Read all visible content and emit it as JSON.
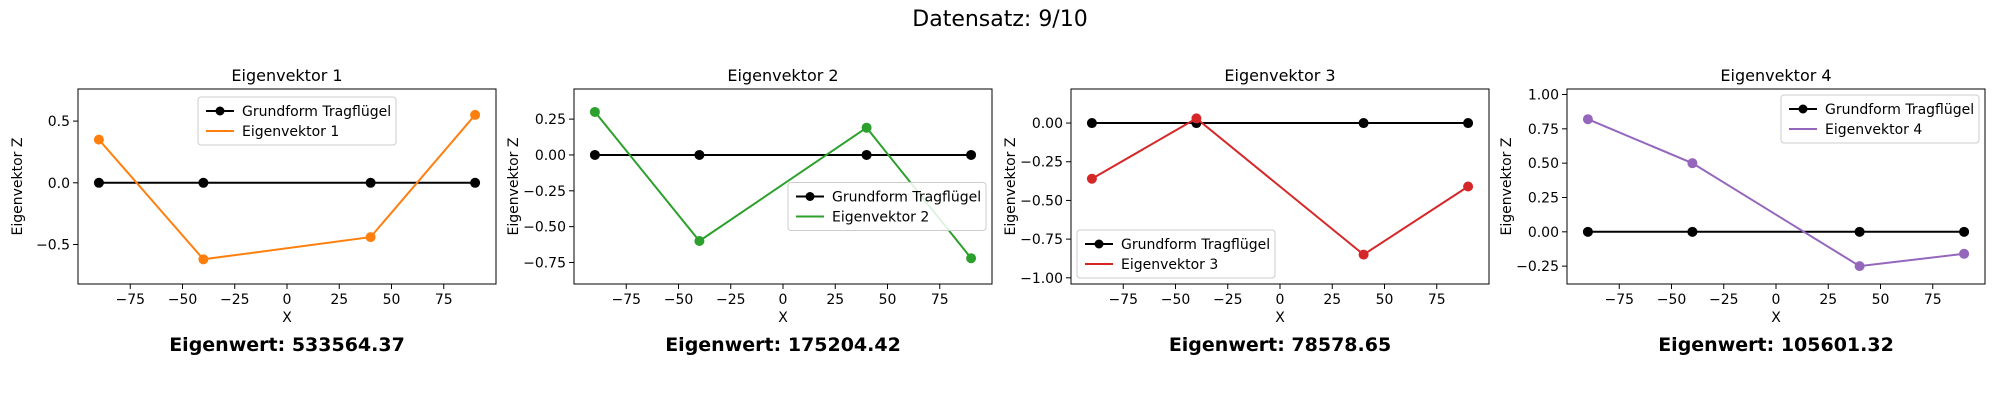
{
  "suptitle": "Datensatz: 9/10",
  "legend_base_label": "Grundform Tragflügel",
  "chart_data": [
    {
      "type": "line",
      "title": "Eigenvektor 1",
      "xlabel": "X",
      "ylabel": "Eigenvektor Z",
      "xlim": [
        -100,
        100
      ],
      "ylim": [
        -0.82,
        0.76
      ],
      "xticks": [
        -75,
        -50,
        -25,
        0,
        25,
        50,
        75
      ],
      "yticks": [
        -0.5,
        0.0,
        0.5
      ],
      "ytick_labels": [
        "−0.5",
        "0.0",
        "0.5"
      ],
      "legend_position": "upper-center",
      "eigenvalue_label": "Eigenwert: 533564.37",
      "series": [
        {
          "name": "Grundform Tragflügel",
          "color": "#000000",
          "x": [
            -90,
            -40,
            40,
            90
          ],
          "y": [
            0,
            0,
            0,
            0
          ]
        },
        {
          "name": "Eigenvektor 1",
          "color": "#ff7f0e",
          "x": [
            -90,
            -40,
            40,
            90
          ],
          "y": [
            0.35,
            -0.62,
            -0.44,
            0.55
          ]
        }
      ]
    },
    {
      "type": "line",
      "title": "Eigenvektor 2",
      "xlabel": "X",
      "ylabel": "Eigenvektor Z",
      "xlim": [
        -100,
        100
      ],
      "ylim": [
        -0.9,
        0.46
      ],
      "xticks": [
        -75,
        -50,
        -25,
        0,
        25,
        50,
        75
      ],
      "yticks": [
        -0.75,
        -0.5,
        -0.25,
        0.0,
        0.25
      ],
      "ytick_labels": [
        "−0.75",
        "−0.50",
        "−0.25",
        "0.00",
        "0.25"
      ],
      "legend_position": "center-right",
      "eigenvalue_label": "Eigenwert: 175204.42",
      "series": [
        {
          "name": "Grundform Tragflügel",
          "color": "#000000",
          "x": [
            -90,
            -40,
            40,
            90
          ],
          "y": [
            0,
            0,
            0,
            0
          ]
        },
        {
          "name": "Eigenvektor 2",
          "color": "#2ca02c",
          "x": [
            -90,
            -40,
            40,
            90
          ],
          "y": [
            0.3,
            -0.6,
            0.19,
            -0.72
          ]
        }
      ]
    },
    {
      "type": "line",
      "title": "Eigenvektor 3",
      "xlabel": "X",
      "ylabel": "Eigenvektor Z",
      "xlim": [
        -100,
        100
      ],
      "ylim": [
        -1.04,
        0.22
      ],
      "xticks": [
        -75,
        -50,
        -25,
        0,
        25,
        50,
        75
      ],
      "yticks": [
        -1.0,
        -0.75,
        -0.5,
        -0.25,
        0.0
      ],
      "ytick_labels": [
        "−1.00",
        "−0.75",
        "−0.50",
        "−0.25",
        "0.00"
      ],
      "legend_position": "lower-left",
      "eigenvalue_label": "Eigenwert: 78578.65",
      "series": [
        {
          "name": "Grundform Tragflügel",
          "color": "#000000",
          "x": [
            -90,
            -40,
            40,
            90
          ],
          "y": [
            0,
            0,
            0,
            0
          ]
        },
        {
          "name": "Eigenvektor 3",
          "color": "#d62728",
          "x": [
            -90,
            -40,
            40,
            90
          ],
          "y": [
            -0.36,
            0.03,
            -0.85,
            -0.41
          ]
        }
      ]
    },
    {
      "type": "line",
      "title": "Eigenvektor 4",
      "xlabel": "X",
      "ylabel": "Eigenvektor Z",
      "xlim": [
        -100,
        100
      ],
      "ylim": [
        -0.38,
        1.04
      ],
      "xticks": [
        -75,
        -50,
        -25,
        0,
        25,
        50,
        75
      ],
      "yticks": [
        -0.25,
        0.0,
        0.25,
        0.5,
        0.75,
        1.0
      ],
      "ytick_labels": [
        "−0.25",
        "0.00",
        "0.25",
        "0.50",
        "0.75",
        "1.00"
      ],
      "legend_position": "upper-right",
      "eigenvalue_label": "Eigenwert: 105601.32",
      "series": [
        {
          "name": "Grundform Tragflügel",
          "color": "#000000",
          "x": [
            -90,
            -40,
            40,
            90
          ],
          "y": [
            0,
            0,
            0,
            0
          ]
        },
        {
          "name": "Eigenvektor 4",
          "color": "#9467bd",
          "x": [
            -90,
            -40,
            40,
            90
          ],
          "y": [
            0.82,
            0.5,
            -0.25,
            -0.16
          ]
        }
      ]
    }
  ]
}
